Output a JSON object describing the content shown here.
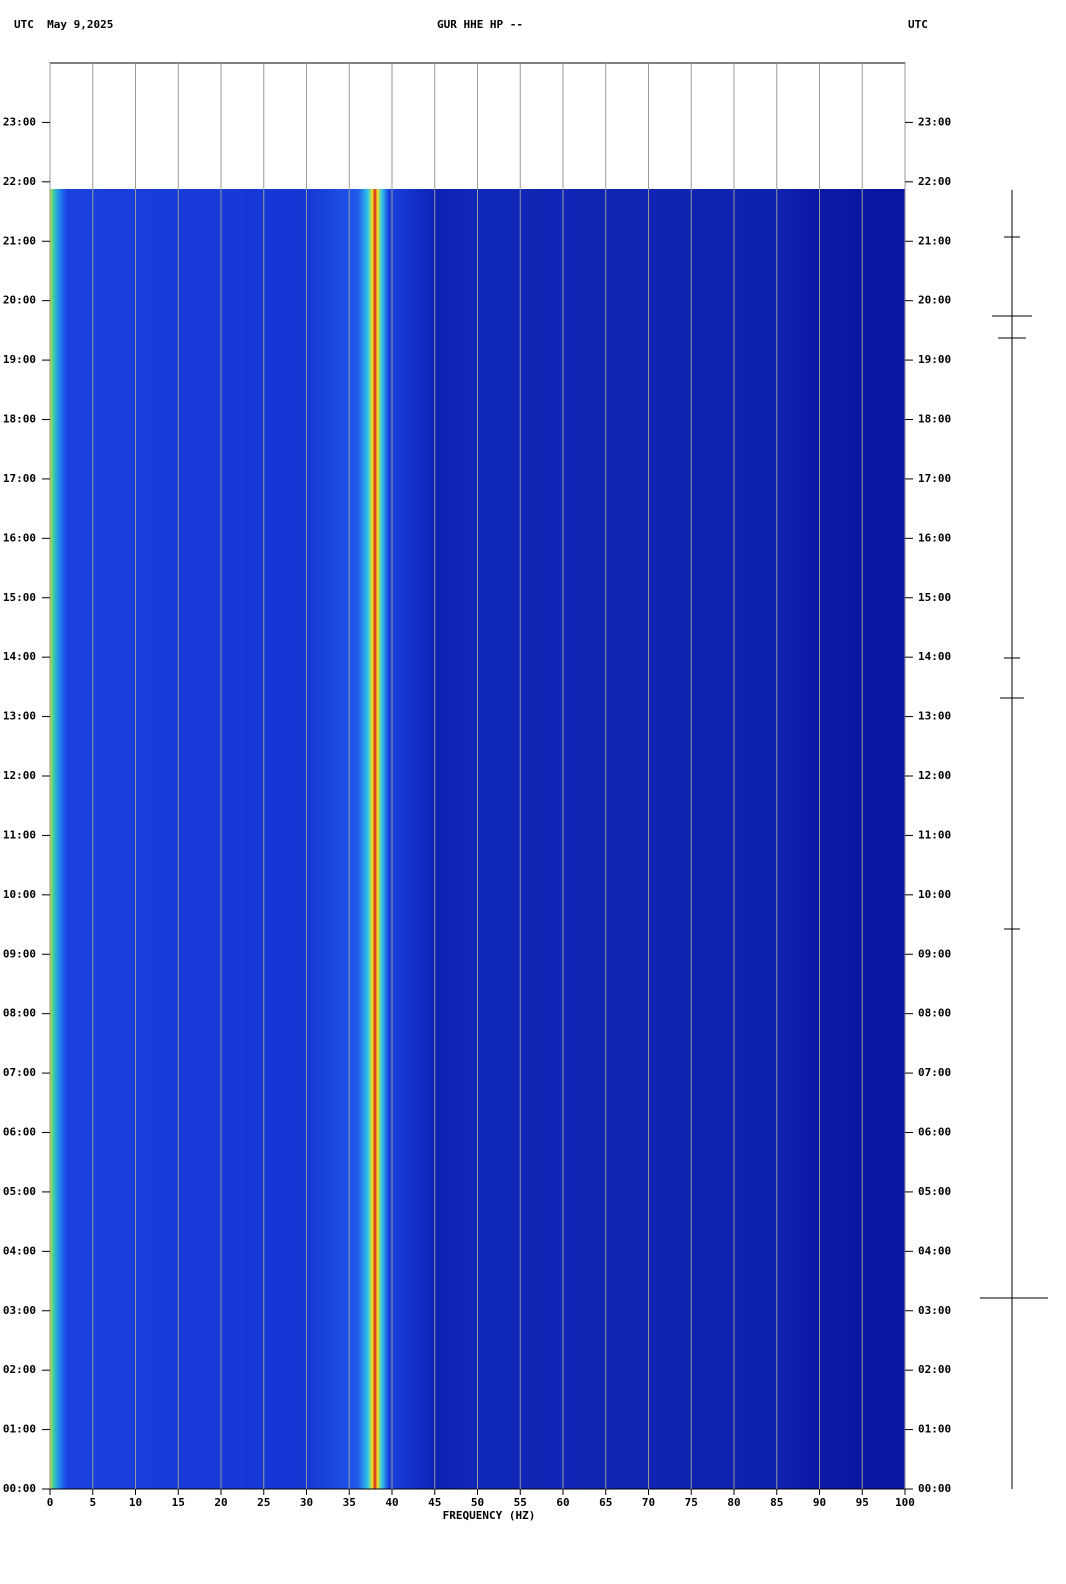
{
  "chart_data": {
    "type": "spectrogram",
    "title": "GUR HHE HP --",
    "date_label": "UTC  May 9,2025",
    "right_label": "UTC",
    "xlabel": "FREQUENCY (HZ)",
    "xlim": [
      0,
      100
    ],
    "xticks": [
      0,
      5,
      10,
      15,
      20,
      25,
      30,
      35,
      40,
      45,
      50,
      55,
      60,
      65,
      70,
      75,
      80,
      85,
      90,
      95,
      100
    ],
    "ylim": [
      0,
      24
    ],
    "yticks": [
      {
        "value": 0,
        "label": "00:00"
      },
      {
        "value": 1,
        "label": "01:00"
      },
      {
        "value": 2,
        "label": "02:00"
      },
      {
        "value": 3,
        "label": "03:00"
      },
      {
        "value": 4,
        "label": "04:00"
      },
      {
        "value": 5,
        "label": "05:00"
      },
      {
        "value": 6,
        "label": "06:00"
      },
      {
        "value": 7,
        "label": "07:00"
      },
      {
        "value": 8,
        "label": "08:00"
      },
      {
        "value": 9,
        "label": "09:00"
      },
      {
        "value": 10,
        "label": "10:00"
      },
      {
        "value": 11,
        "label": "11:00"
      },
      {
        "value": 12,
        "label": "12:00"
      },
      {
        "value": 13,
        "label": "13:00"
      },
      {
        "value": 14,
        "label": "14:00"
      },
      {
        "value": 15,
        "label": "15:00"
      },
      {
        "value": 16,
        "label": "16:00"
      },
      {
        "value": 17,
        "label": "17:00"
      },
      {
        "value": 18,
        "label": "18:00"
      },
      {
        "value": 19,
        "label": "19:00"
      },
      {
        "value": 20,
        "label": "20:00"
      },
      {
        "value": 21,
        "label": "21:00"
      },
      {
        "value": 22,
        "label": "22:00"
      },
      {
        "value": 23,
        "label": "23:00"
      }
    ],
    "grid": true
  }
}
